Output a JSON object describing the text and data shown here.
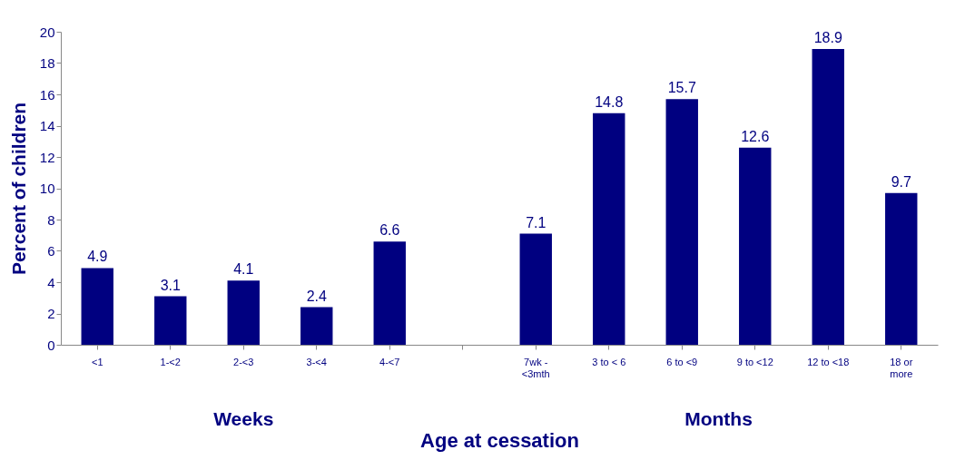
{
  "chart_data": {
    "type": "bar",
    "xlabel": "Age at cessation",
    "ylabel": "Percent of children",
    "categories": [
      "<1",
      "1-<2",
      "2-<3",
      "3-<4",
      "4-<7",
      null,
      "7wk - <3mth",
      "3 to < 6",
      "6 to <9",
      "9 to <12",
      "12 to <18",
      "18 or more"
    ],
    "values": [
      4.9,
      3.1,
      4.1,
      2.4,
      6.6,
      null,
      7.1,
      14.8,
      15.7,
      12.6,
      18.9,
      9.7
    ],
    "color": "#000080",
    "ylim": [
      0,
      20
    ],
    "yticks": [
      0,
      2,
      4,
      6,
      8,
      10,
      12,
      14,
      16,
      18,
      20
    ],
    "grid": false,
    "data_labels": true,
    "annotations": [
      "Weeks",
      "Months"
    ]
  }
}
